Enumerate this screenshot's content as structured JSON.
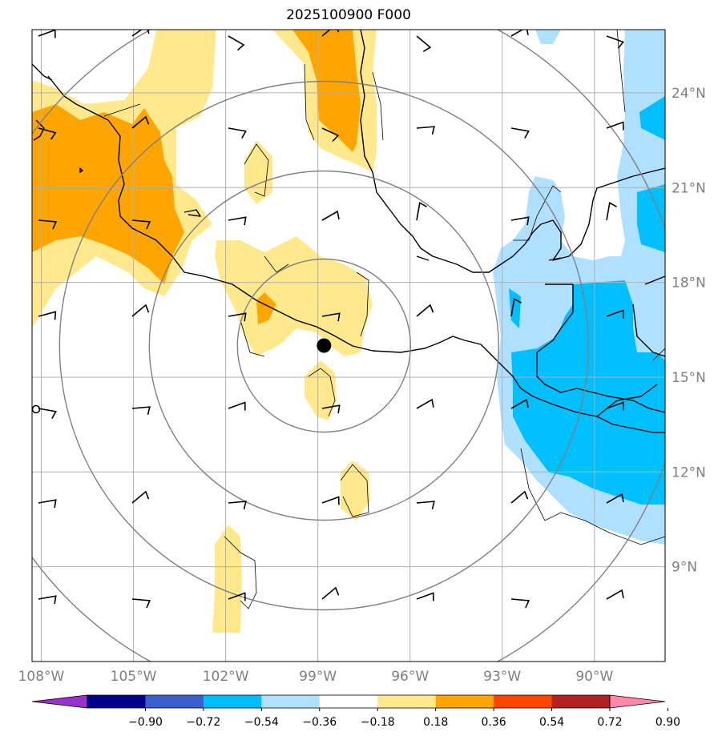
{
  "title": "2025100900 F000",
  "map": {
    "lon_range": [
      -108.3,
      -87.7
    ],
    "lat_range": [
      6.0,
      26.0
    ],
    "lon_ticks": [
      {
        "value": -108,
        "label": "108°W"
      },
      {
        "value": -105,
        "label": "105°W"
      },
      {
        "value": -102,
        "label": "102°W"
      },
      {
        "value": -99,
        "label": "99°W"
      },
      {
        "value": -96,
        "label": "96°W"
      },
      {
        "value": -93,
        "label": "93°W"
      },
      {
        "value": -90,
        "label": "90°W"
      }
    ],
    "lat_ticks": [
      {
        "value": 9,
        "label": "9°N"
      },
      {
        "value": 12,
        "label": "12°N"
      },
      {
        "value": 15,
        "label": "15°N"
      },
      {
        "value": 18,
        "label": "18°N"
      },
      {
        "value": 21,
        "label": "21°N"
      },
      {
        "value": 24,
        "label": "24°N"
      }
    ],
    "center_marker": {
      "lon": -98.8,
      "lat": 16.0
    },
    "gridlines": true
  },
  "colorbar": {
    "levels": [
      "−0.90",
      "−0.72",
      "−0.54",
      "−0.36",
      "−0.18",
      "0.18",
      "0.36",
      "0.54",
      "0.72",
      "0.90"
    ],
    "colors": [
      "#9932cc",
      "#00008b",
      "#3a5fcd",
      "#00bfff",
      "#b0e0ff",
      "#ffffff",
      "#ffe98c",
      "#ffa500",
      "#ff4500",
      "#b22222",
      "#ff88aa"
    ]
  },
  "colors": {
    "land_line": "#000000",
    "grid": "#b0b0b0",
    "rings": "#808080"
  }
}
